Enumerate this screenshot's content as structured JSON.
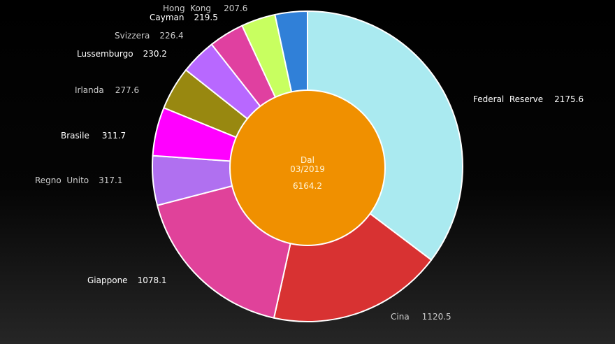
{
  "chart_data": {
    "type": "pie",
    "variant": "donut",
    "center": {
      "line1": "Dal",
      "line2": "03/2019",
      "total": "6164.2"
    },
    "center_color": "#f09000",
    "slices": [
      {
        "label": "Federal  Reserve",
        "value": 2175.6,
        "value_text": "2175.6",
        "color": "#aaeaf0",
        "label_color": "#ffffff"
      },
      {
        "label": "Cina",
        "value": 1120.5,
        "value_text": "1120.5",
        "color": "#d83232",
        "label_color": "#cccccc"
      },
      {
        "label": "Giappone",
        "value": 1078.1,
        "value_text": "1078.1",
        "color": "#e0429a",
        "label_color": "#ffffff"
      },
      {
        "label": "Regno  Unito",
        "value": 317.1,
        "value_text": "317.1",
        "color": "#b070f0",
        "label_color": "#cccccc"
      },
      {
        "label": "Brasile",
        "value": 311.7,
        "value_text": "311.7",
        "color": "#ff00ff",
        "label_color": "#ffffff"
      },
      {
        "label": "Irlanda",
        "value": 277.6,
        "value_text": "277.6",
        "color": "#988810",
        "label_color": "#cccccc"
      },
      {
        "label": "Lussemburgo",
        "value": 230.2,
        "value_text": "230.2",
        "color": "#b868ff",
        "label_color": "#ffffff"
      },
      {
        "label": "Svizzera",
        "value": 226.4,
        "value_text": "226.4",
        "color": "#e040a0",
        "label_color": "#cccccc"
      },
      {
        "label": "Cayman",
        "value": 219.5,
        "value_text": "219.5",
        "color": "#c8ff60",
        "label_color": "#ffffff"
      },
      {
        "label": "Hong  Kong",
        "value": 207.6,
        "value_text": "207.6",
        "color": "#3080d8",
        "label_color": "#cccccc"
      }
    ]
  }
}
